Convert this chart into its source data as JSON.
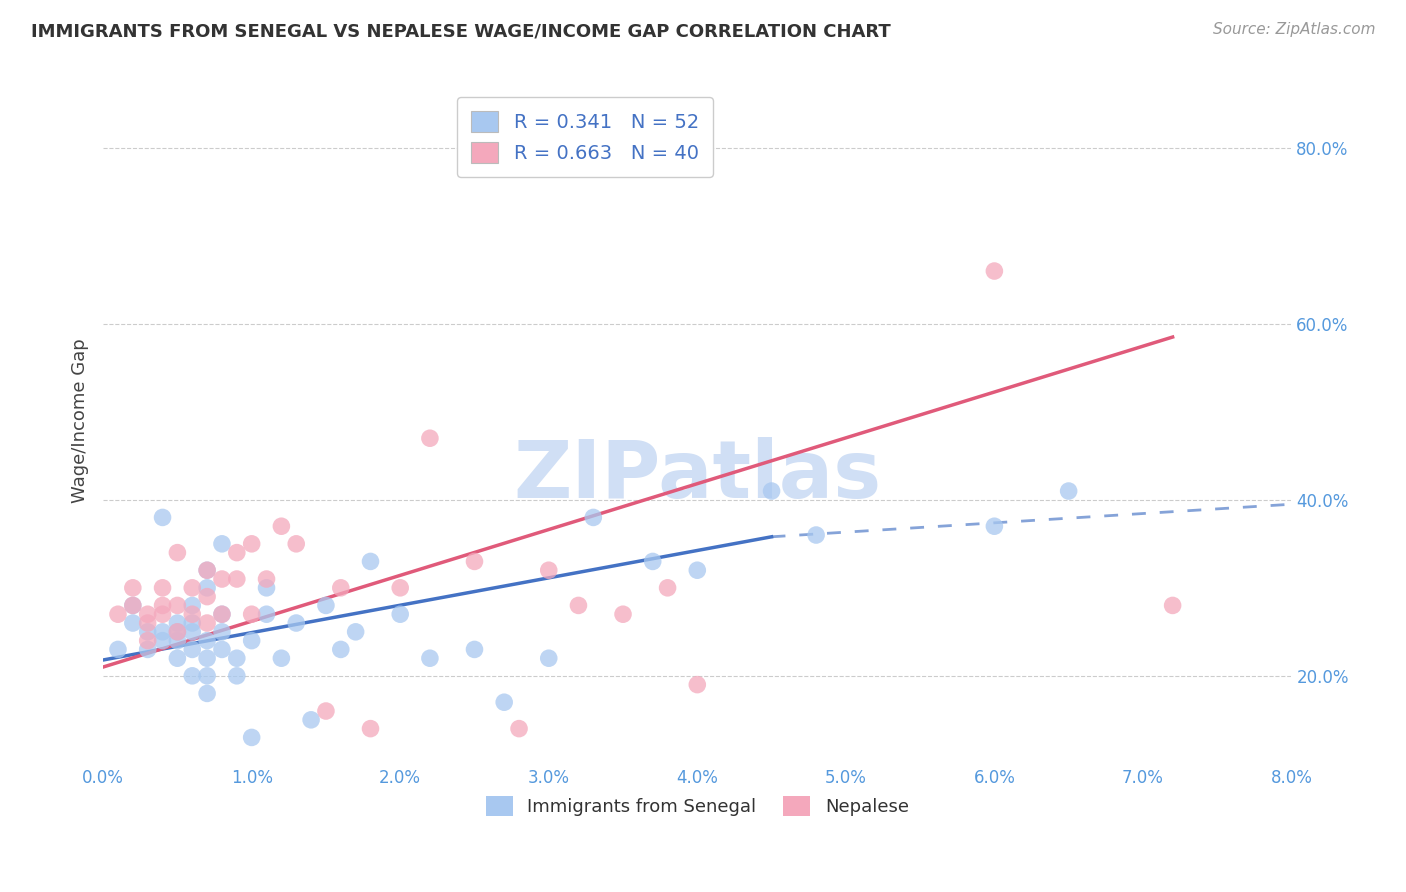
{
  "title": "IMMIGRANTS FROM SENEGAL VS NEPALESE WAGE/INCOME GAP CORRELATION CHART",
  "source": "Source: ZipAtlas.com",
  "ylabel": "Wage/Income Gap",
  "xlim": [
    0.0,
    0.08
  ],
  "ylim": [
    0.1,
    0.88
  ],
  "xtick_labels": [
    "0.0%",
    "1.0%",
    "2.0%",
    "3.0%",
    "4.0%",
    "5.0%",
    "6.0%",
    "7.0%",
    "8.0%"
  ],
  "xtick_vals": [
    0.0,
    0.01,
    0.02,
    0.03,
    0.04,
    0.05,
    0.06,
    0.07,
    0.08
  ],
  "ytick_labels": [
    "20.0%",
    "40.0%",
    "60.0%",
    "80.0%"
  ],
  "ytick_vals": [
    0.2,
    0.4,
    0.6,
    0.8
  ],
  "legend_label1": "Immigrants from Senegal",
  "legend_label2": "Nepalese",
  "R1": "0.341",
  "N1": "52",
  "R2": "0.663",
  "N2": "40",
  "color1": "#a8c8f0",
  "color2": "#f4a8bc",
  "line_color1": "#4472c4",
  "line_color2": "#e05a7a",
  "watermark": "ZIPatlas",
  "watermark_color": "#d0dff5",
  "blue_line_x0": 0.0,
  "blue_line_y0": 0.218,
  "blue_line_x1": 0.045,
  "blue_line_y1": 0.358,
  "blue_line_solid_end": 0.045,
  "blue_line_x2": 0.08,
  "blue_line_y2": 0.395,
  "pink_line_x0": 0.0,
  "pink_line_y0": 0.21,
  "pink_line_x1": 0.072,
  "pink_line_y1": 0.585,
  "blue_scatter_x": [
    0.001,
    0.002,
    0.002,
    0.003,
    0.003,
    0.004,
    0.004,
    0.004,
    0.005,
    0.005,
    0.005,
    0.005,
    0.006,
    0.006,
    0.006,
    0.006,
    0.006,
    0.007,
    0.007,
    0.007,
    0.007,
    0.007,
    0.007,
    0.008,
    0.008,
    0.008,
    0.008,
    0.009,
    0.009,
    0.01,
    0.01,
    0.011,
    0.011,
    0.012,
    0.013,
    0.014,
    0.015,
    0.016,
    0.017,
    0.018,
    0.02,
    0.022,
    0.025,
    0.027,
    0.03,
    0.033,
    0.037,
    0.04,
    0.045,
    0.048,
    0.06,
    0.065
  ],
  "blue_scatter_y": [
    0.23,
    0.26,
    0.28,
    0.23,
    0.25,
    0.24,
    0.25,
    0.38,
    0.22,
    0.24,
    0.25,
    0.26,
    0.2,
    0.23,
    0.25,
    0.26,
    0.28,
    0.18,
    0.2,
    0.22,
    0.24,
    0.3,
    0.32,
    0.23,
    0.25,
    0.27,
    0.35,
    0.2,
    0.22,
    0.13,
    0.24,
    0.27,
    0.3,
    0.22,
    0.26,
    0.15,
    0.28,
    0.23,
    0.25,
    0.33,
    0.27,
    0.22,
    0.23,
    0.17,
    0.22,
    0.38,
    0.33,
    0.32,
    0.41,
    0.36,
    0.37,
    0.41
  ],
  "pink_scatter_x": [
    0.001,
    0.002,
    0.002,
    0.003,
    0.003,
    0.003,
    0.004,
    0.004,
    0.004,
    0.005,
    0.005,
    0.005,
    0.006,
    0.006,
    0.007,
    0.007,
    0.007,
    0.008,
    0.008,
    0.009,
    0.009,
    0.01,
    0.01,
    0.011,
    0.012,
    0.013,
    0.015,
    0.016,
    0.018,
    0.02,
    0.022,
    0.025,
    0.028,
    0.03,
    0.032,
    0.035,
    0.038,
    0.04,
    0.06,
    0.072
  ],
  "pink_scatter_y": [
    0.27,
    0.28,
    0.3,
    0.24,
    0.26,
    0.27,
    0.27,
    0.28,
    0.3,
    0.25,
    0.28,
    0.34,
    0.27,
    0.3,
    0.26,
    0.29,
    0.32,
    0.27,
    0.31,
    0.31,
    0.34,
    0.27,
    0.35,
    0.31,
    0.37,
    0.35,
    0.16,
    0.3,
    0.14,
    0.3,
    0.47,
    0.33,
    0.14,
    0.32,
    0.28,
    0.27,
    0.3,
    0.19,
    0.66,
    0.28
  ]
}
